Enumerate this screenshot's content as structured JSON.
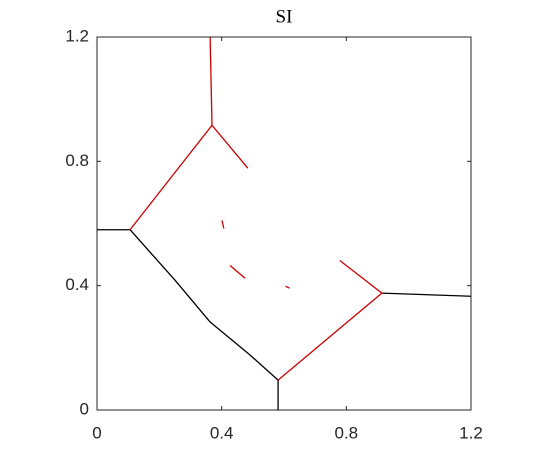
{
  "chart_data": {
    "type": "line",
    "title": "SI",
    "xlim": [
      0,
      1.2
    ],
    "ylim": [
      0,
      1.2
    ],
    "xticks": [
      0,
      0.4,
      0.8,
      1.2
    ],
    "yticks": [
      0,
      0.4,
      0.8,
      1.2
    ],
    "box": true,
    "series": [
      {
        "color": "#000000",
        "x": [
          0,
          0.106,
          0.25,
          0.363,
          0.491,
          0.581,
          0.581,
          null,
          0.914,
          1.2
        ],
        "values": [
          0.58,
          0.58,
          0.418,
          0.283,
          0.177,
          0.096,
          0,
          null,
          0.376,
          0.366
        ]
      },
      {
        "color": "#cc0000",
        "x": [
          0.363,
          0.369,
          0.106,
          null,
          0.369,
          0.484,
          null,
          0.581,
          0.914,
          0.779,
          null,
          0.427,
          0.475,
          null,
          0.401,
          0.407,
          null,
          0.605,
          0.618
        ],
        "values": [
          1.2,
          0.916,
          0.58,
          null,
          0.916,
          0.778,
          null,
          0.096,
          0.376,
          0.481,
          null,
          0.465,
          0.424,
          null,
          0.61,
          0.584,
          null,
          0.398,
          0.392
        ]
      }
    ]
  }
}
